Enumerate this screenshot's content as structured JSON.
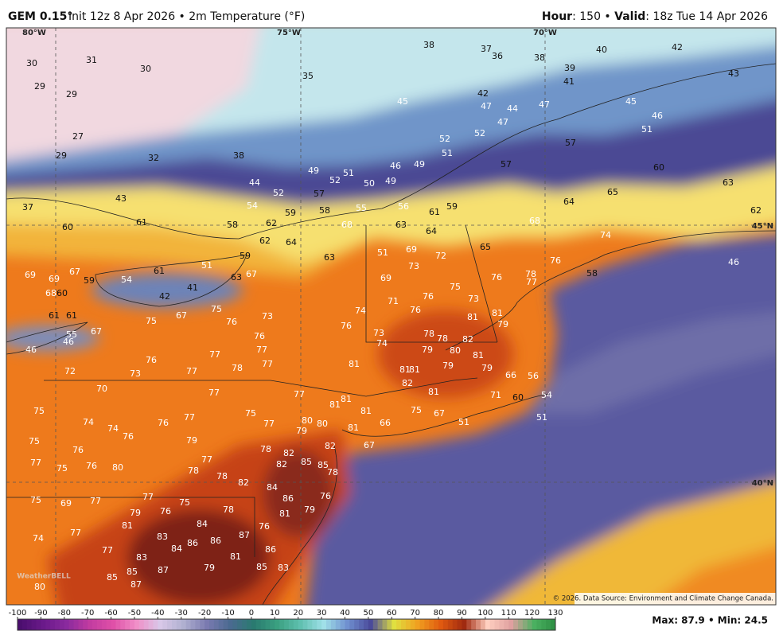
{
  "header": {
    "model": "GEM 0.15°",
    "run": "Init 12z 8 Apr 2026 • 2m Temperature (°F)",
    "hour_label": "Hour",
    "hour_value": ": 150 • ",
    "valid_label": "Valid",
    "valid_value": ": 18z Tue 14 Apr 2026"
  },
  "grid_labels": [
    "80°W",
    "75°W",
    "70°W",
    "45°N",
    "40°N"
  ],
  "temperatures": [
    30,
    31,
    30,
    29,
    29,
    27,
    29,
    32,
    38,
    35,
    38,
    37,
    36,
    38,
    39,
    41,
    40,
    42,
    43,
    45,
    42,
    47,
    44,
    47,
    45,
    46,
    51,
    57,
    57,
    60,
    65,
    63,
    64,
    62,
    68,
    74,
    46,
    44,
    52,
    54,
    57,
    49,
    51,
    52,
    50,
    49,
    46,
    49,
    51,
    52,
    52,
    47,
    43,
    37,
    60,
    61,
    58,
    62,
    59,
    58,
    55,
    56,
    61,
    59,
    68,
    63,
    64,
    62,
    64,
    59,
    63,
    51,
    69,
    72,
    65,
    76,
    69,
    69,
    67,
    59,
    54,
    61,
    51,
    63,
    67,
    42,
    41,
    68,
    60,
    73,
    69,
    71,
    76,
    76,
    75,
    73,
    76,
    78,
    77,
    58,
    74,
    73,
    75,
    67,
    61,
    61,
    55,
    46,
    46,
    67,
    75,
    76,
    76,
    77,
    77,
    81,
    81,
    79,
    76,
    73,
    74,
    78,
    78,
    82,
    79,
    80,
    81,
    79,
    79,
    81,
    81,
    82,
    81,
    76,
    77,
    78,
    77,
    81,
    72,
    73,
    70,
    77,
    77,
    81,
    81,
    81,
    75,
    67,
    66,
    51,
    71,
    66,
    60,
    56,
    54,
    51,
    75,
    74,
    74,
    76,
    77,
    75,
    77,
    80,
    80,
    79,
    81,
    82,
    67,
    75,
    76,
    76,
    79,
    78,
    82,
    85,
    85,
    82,
    77,
    75,
    76,
    80,
    77,
    78,
    78,
    82,
    84,
    78,
    75,
    69,
    77,
    77,
    76,
    75,
    79,
    86,
    76,
    79,
    81,
    81,
    78,
    77,
    74,
    77,
    83,
    83,
    84,
    86,
    84,
    86,
    87,
    76,
    86,
    81,
    85,
    83,
    85,
    85,
    87,
    79,
    87,
    80
  ],
  "credit": "© 2026. Data Source: Environment and Climate Change Canada.",
  "logo": "WeatherBELL",
  "colorbar": {
    "ticks": [
      -100,
      -90,
      -80,
      -70,
      -60,
      -50,
      -40,
      -30,
      -20,
      -10,
      0,
      10,
      20,
      30,
      40,
      50,
      60,
      70,
      80,
      90,
      100,
      110,
      120,
      130
    ]
  },
  "stats": "Max: 87.9 • Min: 24.5"
}
